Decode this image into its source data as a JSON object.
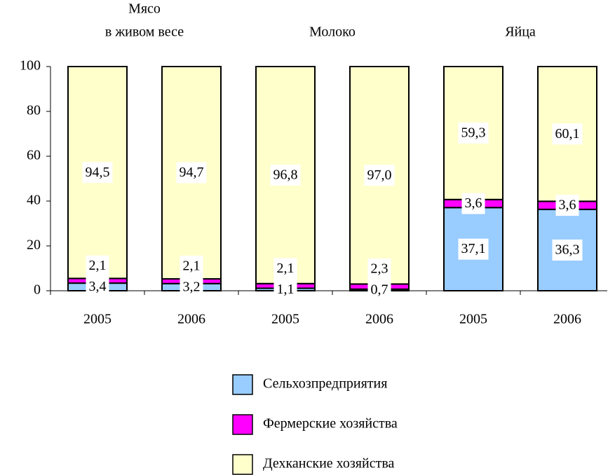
{
  "chart_data": {
    "type": "stacked_bar",
    "groups": [
      {
        "lines": [
          "Мясо",
          "в живом весе"
        ]
      },
      {
        "lines": [
          "Молоко"
        ]
      },
      {
        "lines": [
          "Яйца"
        ]
      }
    ],
    "categories": [
      "2005",
      "2006",
      "2005",
      "2006",
      "2005",
      "2006"
    ],
    "series": [
      {
        "name": "Сельхозпредприятия",
        "color": "#99ccff",
        "values": [
          3.4,
          3.2,
          1.1,
          0.7,
          37.1,
          36.3
        ],
        "value_labels": [
          "3,4",
          "3,2",
          "1,1",
          "0,7",
          "37,1",
          "36,3"
        ]
      },
      {
        "name": "Фермерские хозяйства",
        "color": "#ff00ff",
        "values": [
          2.1,
          2.1,
          2.1,
          2.3,
          3.6,
          3.6
        ],
        "value_labels": [
          "2,1",
          "2,1",
          "2,1",
          "2,3",
          "3,6",
          "3,6"
        ]
      },
      {
        "name": "Дехканские хозяйства",
        "color": "#ffffcc",
        "values": [
          94.5,
          94.7,
          96.8,
          97.0,
          59.3,
          60.1
        ],
        "value_labels": [
          "94,5",
          "94,7",
          "96,8",
          "97,0",
          "59,3",
          "60,1"
        ]
      }
    ],
    "ylim": [
      0,
      100
    ],
    "yticks": [
      0,
      20,
      40,
      60,
      80,
      100
    ],
    "grid": false,
    "legend": "bottom"
  }
}
